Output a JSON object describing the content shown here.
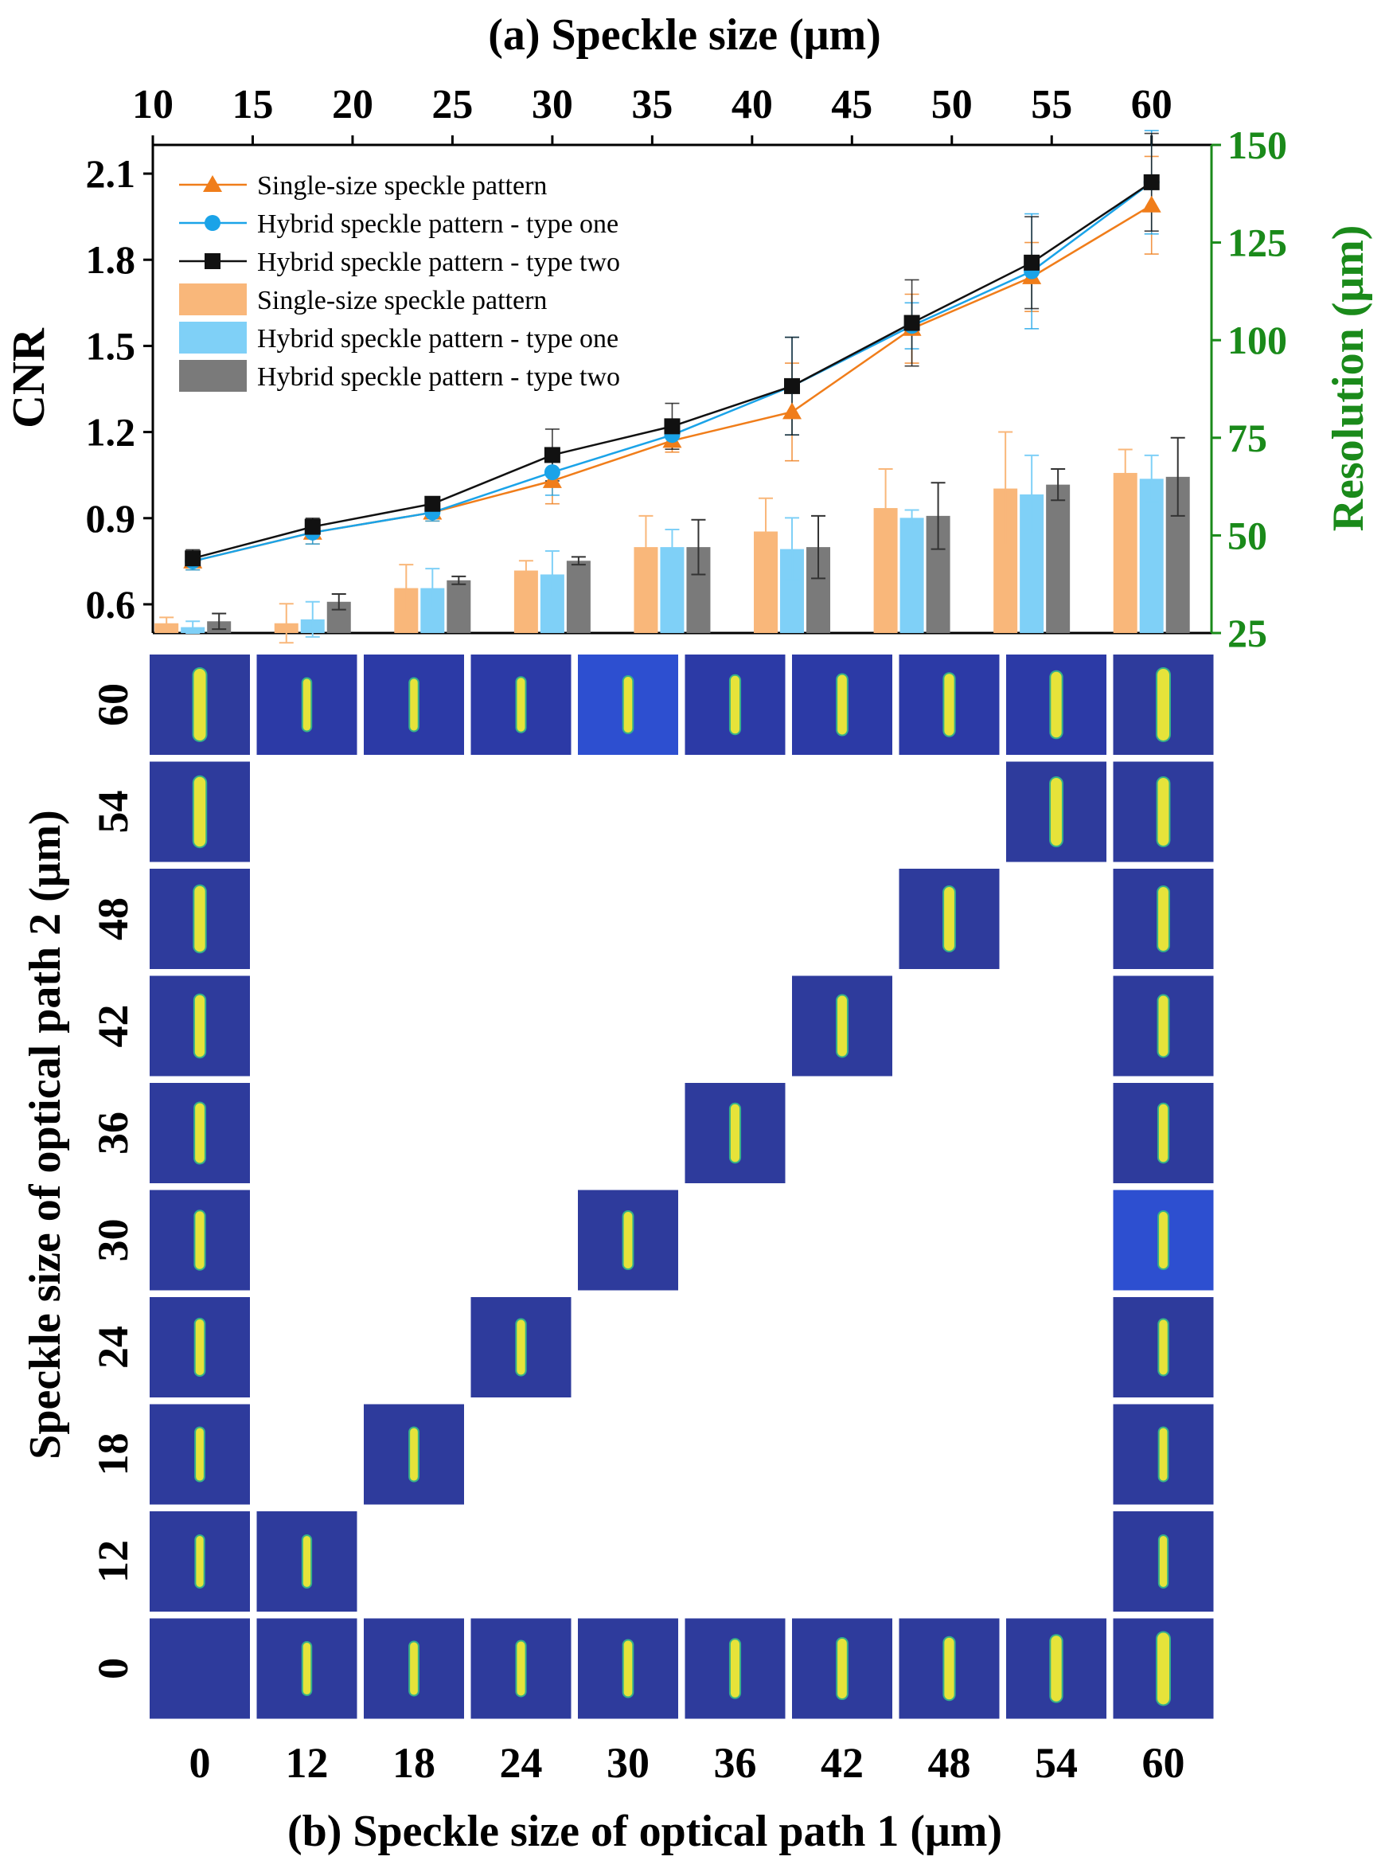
{
  "chart_data": [
    {
      "type": "line+bar",
      "title": "(a)  Speckle size (μm)",
      "top_axis": {
        "ticks": [
          "10",
          "15",
          "20",
          "25",
          "30",
          "35",
          "40",
          "45",
          "50",
          "55",
          "60"
        ],
        "range": [
          10,
          63
        ]
      },
      "left_axis": {
        "label": "CNR",
        "ticks": [
          "0.6",
          "0.9",
          "1.2",
          "1.5",
          "1.8",
          "2.1"
        ],
        "range": [
          0.5,
          2.2
        ]
      },
      "right_axis": {
        "label": "Resolution (μm)",
        "ticks": [
          "25",
          "50",
          "75",
          "100",
          "125",
          "150"
        ],
        "range": [
          25,
          150
        ],
        "color": "#1a8a1a"
      },
      "x": [
        12,
        18,
        24,
        30,
        36,
        42,
        48,
        54,
        60
      ],
      "line_series": [
        {
          "name": "Single-size speckle pattern",
          "color": "#f07d1a",
          "marker": "triangle",
          "values": [
            0.75,
            0.85,
            0.92,
            1.03,
            1.17,
            1.27,
            1.56,
            1.74,
            1.99
          ],
          "errors": [
            0.03,
            0.04,
            0.03,
            0.08,
            0.04,
            0.17,
            0.12,
            0.12,
            0.17
          ]
        },
        {
          "name": "Hybrid speckle pattern - type one",
          "color": "#1aa3e8",
          "marker": "circle",
          "values": [
            0.75,
            0.85,
            0.92,
            1.06,
            1.19,
            1.36,
            1.57,
            1.76,
            2.07
          ],
          "errors": [
            0.03,
            0.04,
            0.03,
            0.08,
            0.04,
            0.17,
            0.08,
            0.2,
            0.18
          ]
        },
        {
          "name": "Hybrid speckle pattern - type two",
          "color": "#111111",
          "marker": "square",
          "values": [
            0.76,
            0.87,
            0.95,
            1.12,
            1.22,
            1.36,
            1.58,
            1.79,
            2.07
          ],
          "errors": [
            0.03,
            0.03,
            0.02,
            0.09,
            0.08,
            0.17,
            0.15,
            0.16,
            0.17
          ]
        }
      ],
      "bar_series": [
        {
          "name": "Single-size speckle pattern",
          "color": "#f9b77a",
          "values": [
            27.5,
            27.5,
            36.5,
            41,
            47,
            51,
            57,
            62,
            66
          ],
          "errors": [
            1.5,
            5,
            6,
            2.5,
            8,
            8.5,
            10,
            14.5,
            6
          ]
        },
        {
          "name": "Hybrid speckle pattern - type one",
          "color": "#7fd0f7",
          "values": [
            26.5,
            28.5,
            36.5,
            40,
            47,
            46.5,
            54.5,
            60.5,
            64.5
          ],
          "errors": [
            1.5,
            4.5,
            5,
            6,
            4.5,
            8,
            2,
            10,
            6
          ]
        },
        {
          "name": "Hybrid speckle pattern - type two",
          "color": "#7a7a7a",
          "values": [
            28,
            33,
            38.5,
            43.5,
            47,
            47,
            55,
            63,
            65
          ],
          "errors": [
            2,
            2,
            1,
            1,
            7,
            8,
            8.5,
            4,
            10
          ]
        }
      ]
    },
    {
      "type": "image-grid",
      "xlabel": "(b)  Speckle size of optical path 1 (μm)",
      "ylabel": "Speckle size of optical path 2 (μm)",
      "x_ticks": [
        "0",
        "12",
        "18",
        "24",
        "30",
        "36",
        "42",
        "48",
        "54",
        "60"
      ],
      "y_ticks": [
        "60",
        "54",
        "48",
        "42",
        "36",
        "30",
        "24",
        "18",
        "12",
        "0"
      ],
      "cells": [
        {
          "col": 0,
          "row": 0,
          "bg": "#2e3b9c",
          "stripe": 1.0
        },
        {
          "col": 1,
          "row": 0,
          "bg": "#2c3aa6",
          "stripe": 0.5
        },
        {
          "col": 2,
          "row": 0,
          "bg": "#2c3aa6",
          "stripe": 0.5
        },
        {
          "col": 3,
          "row": 0,
          "bg": "#2c3aa6",
          "stripe": 0.55
        },
        {
          "col": 4,
          "row": 0,
          "bg": "#2d4fd0",
          "stripe": 0.6
        },
        {
          "col": 5,
          "row": 0,
          "bg": "#2c3aa6",
          "stripe": 0.65
        },
        {
          "col": 6,
          "row": 0,
          "bg": "#2c3aa6",
          "stripe": 0.7
        },
        {
          "col": 7,
          "row": 0,
          "bg": "#2c3aa6",
          "stripe": 0.75
        },
        {
          "col": 8,
          "row": 0,
          "bg": "#2c3aa6",
          "stripe": 0.85
        },
        {
          "col": 9,
          "row": 0,
          "bg": "#2e3b9c",
          "stripe": 1.0
        },
        {
          "col": 0,
          "row": 1,
          "bg": "#2e3b9c",
          "stripe": 0.95
        },
        {
          "col": 8,
          "row": 1,
          "bg": "#2e3b9c",
          "stripe": 0.9
        },
        {
          "col": 9,
          "row": 1,
          "bg": "#2e3b9c",
          "stripe": 0.9
        },
        {
          "col": 0,
          "row": 2,
          "bg": "#2e3b9c",
          "stripe": 0.85
        },
        {
          "col": 7,
          "row": 2,
          "bg": "#2e3b9c",
          "stripe": 0.8
        },
        {
          "col": 9,
          "row": 2,
          "bg": "#2e3b9c",
          "stripe": 0.8
        },
        {
          "col": 0,
          "row": 3,
          "bg": "#2e3b9c",
          "stripe": 0.75
        },
        {
          "col": 6,
          "row": 3,
          "bg": "#2e3b9c",
          "stripe": 0.72
        },
        {
          "col": 9,
          "row": 3,
          "bg": "#2e3b9c",
          "stripe": 0.72
        },
        {
          "col": 0,
          "row": 4,
          "bg": "#2e3b9c",
          "stripe": 0.7
        },
        {
          "col": 5,
          "row": 4,
          "bg": "#2e3b9c",
          "stripe": 0.65
        },
        {
          "col": 9,
          "row": 4,
          "bg": "#2e3b9c",
          "stripe": 0.65
        },
        {
          "col": 0,
          "row": 5,
          "bg": "#2e3b9c",
          "stripe": 0.65
        },
        {
          "col": 4,
          "row": 5,
          "bg": "#2e3b9c",
          "stripe": 0.62
        },
        {
          "col": 9,
          "row": 5,
          "bg": "#2d4fd0",
          "stripe": 0.62
        },
        {
          "col": 0,
          "row": 6,
          "bg": "#2e3b9c",
          "stripe": 0.6
        },
        {
          "col": 3,
          "row": 6,
          "bg": "#2e3b9c",
          "stripe": 0.58
        },
        {
          "col": 9,
          "row": 6,
          "bg": "#2e3b9c",
          "stripe": 0.58
        },
        {
          "col": 0,
          "row": 7,
          "bg": "#2e3b9c",
          "stripe": 0.52
        },
        {
          "col": 2,
          "row": 7,
          "bg": "#2e3b9c",
          "stripe": 0.52
        },
        {
          "col": 9,
          "row": 7,
          "bg": "#2e3b9c",
          "stripe": 0.52
        },
        {
          "col": 0,
          "row": 8,
          "bg": "#2e3b9c",
          "stripe": 0.48
        },
        {
          "col": 1,
          "row": 8,
          "bg": "#2e3b9c",
          "stripe": 0.48
        },
        {
          "col": 9,
          "row": 8,
          "bg": "#2e3b9c",
          "stripe": 0.48
        },
        {
          "col": 0,
          "row": 9,
          "bg": "#2e3b9c",
          "stripe": 0.0
        },
        {
          "col": 1,
          "row": 9,
          "bg": "#2e3b9c",
          "stripe": 0.5
        },
        {
          "col": 2,
          "row": 9,
          "bg": "#2e3b9c",
          "stripe": 0.52
        },
        {
          "col": 3,
          "row": 9,
          "bg": "#2e3b9c",
          "stripe": 0.56
        },
        {
          "col": 4,
          "row": 9,
          "bg": "#2e3b9c",
          "stripe": 0.6
        },
        {
          "col": 5,
          "row": 9,
          "bg": "#2e3b9c",
          "stripe": 0.65
        },
        {
          "col": 6,
          "row": 9,
          "bg": "#2e3b9c",
          "stripe": 0.7
        },
        {
          "col": 7,
          "row": 9,
          "bg": "#2e3b9c",
          "stripe": 0.75
        },
        {
          "col": 8,
          "row": 9,
          "bg": "#2e3b9c",
          "stripe": 0.85
        },
        {
          "col": 9,
          "row": 9,
          "bg": "#2e3b9c",
          "stripe": 1.0
        }
      ]
    }
  ]
}
